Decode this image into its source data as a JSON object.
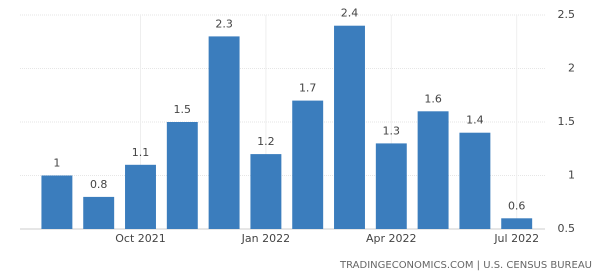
{
  "chart_data": {
    "type": "bar",
    "categories": [
      null,
      null,
      "Oct 2021",
      null,
      null,
      "Jan 2022",
      null,
      null,
      "Apr 2022",
      null,
      null,
      "Jul 2022"
    ],
    "values": [
      1,
      0.8,
      1.1,
      1.5,
      2.3,
      1.2,
      1.7,
      2.4,
      1.3,
      1.6,
      1.4,
      0.6
    ],
    "color": "#3b7dbd",
    "ylim": [
      0.5,
      2.5
    ],
    "yticks": [
      0.5,
      1,
      1.5,
      2,
      2.5
    ],
    "grid": true,
    "source": "TRADINGECONOMICS.COM | U.S. CENSUS BUREAU"
  }
}
